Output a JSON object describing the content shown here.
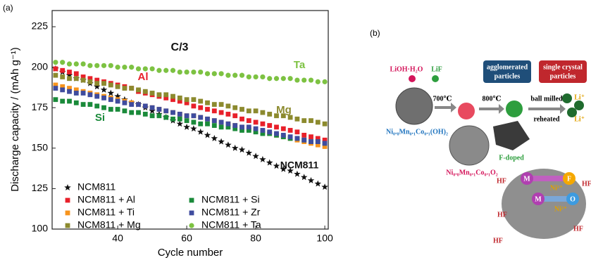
{
  "chart_data": {
    "type": "scatter",
    "panel_label": "(a)",
    "xlabel": "Cycle number",
    "ylabel": "Discharge capacity / (mAh g⁻¹)",
    "xlim": [
      21,
      101
    ],
    "ylim": [
      100,
      235
    ],
    "xticks": [
      40,
      60,
      80,
      100
    ],
    "yticks": [
      100,
      125,
      150,
      175,
      200,
      225
    ],
    "x": [
      22,
      24,
      26,
      28,
      30,
      32,
      34,
      36,
      38,
      40,
      42,
      44,
      46,
      48,
      50,
      52,
      54,
      56,
      58,
      60,
      62,
      64,
      66,
      68,
      70,
      72,
      74,
      76,
      78,
      80,
      82,
      84,
      86,
      88,
      90,
      92,
      94,
      96,
      98,
      100
    ],
    "series": [
      {
        "name": "NCM811",
        "color": "#111111",
        "marker": "star",
        "values": [
          199,
          197,
          195,
          193,
          192,
          190,
          188,
          186,
          184,
          182,
          180,
          178,
          177,
          175,
          173,
          171,
          169,
          167,
          165,
          163,
          162,
          160,
          158,
          156,
          154,
          152,
          150,
          149,
          147,
          145,
          143,
          141,
          139,
          137,
          136,
          134,
          132,
          130,
          128,
          126
        ]
      },
      {
        "name": "NCM811 + Al",
        "color": "#e8202a",
        "marker": "square",
        "values": [
          199,
          198,
          197,
          196,
          194,
          193,
          192,
          191,
          190,
          189,
          188,
          187,
          185,
          184,
          183,
          182,
          181,
          180,
          179,
          178,
          176,
          175,
          174,
          173,
          172,
          171,
          170,
          168,
          167,
          166,
          165,
          164,
          163,
          162,
          161,
          160,
          158,
          157,
          156,
          155
        ]
      },
      {
        "name": "NCM811 + Ti",
        "color": "#f7941d",
        "marker": "square",
        "values": [
          189,
          188,
          187,
          186,
          185,
          184,
          183,
          182,
          181,
          180,
          179,
          178,
          177,
          176,
          175,
          174,
          173,
          172,
          171,
          170,
          170,
          169,
          168,
          167,
          166,
          165,
          164,
          163,
          162,
          161,
          160,
          159,
          158,
          157,
          156,
          155,
          154,
          153,
          152,
          151
        ]
      },
      {
        "name": "NCM811 + Mg",
        "color": "#8c8a2e",
        "marker": "square",
        "values": [
          195,
          194,
          193,
          193,
          192,
          191,
          190,
          190,
          189,
          188,
          187,
          187,
          186,
          185,
          184,
          183,
          183,
          182,
          181,
          180,
          180,
          179,
          178,
          177,
          177,
          176,
          175,
          174,
          173,
          173,
          172,
          171,
          170,
          170,
          169,
          168,
          167,
          167,
          166,
          165
        ]
      },
      {
        "name": "NCM811 + Si",
        "color": "#1a8a3a",
        "marker": "square",
        "values": [
          180,
          179,
          179,
          178,
          177,
          177,
          176,
          175,
          174,
          174,
          173,
          172,
          172,
          171,
          170,
          170,
          169,
          168,
          168,
          167,
          166,
          165,
          165,
          164,
          163,
          163,
          162,
          161,
          161,
          160,
          159,
          159,
          158,
          157,
          156,
          156,
          155,
          154,
          154,
          153
        ]
      },
      {
        "name": "NCM811 + Zr",
        "color": "#3f4c9e",
        "marker": "square",
        "values": [
          187,
          186,
          185,
          184,
          184,
          183,
          182,
          181,
          180,
          179,
          178,
          177,
          177,
          176,
          175,
          174,
          173,
          172,
          171,
          170,
          170,
          169,
          168,
          167,
          166,
          165,
          164,
          163,
          163,
          162,
          161,
          160,
          159,
          158,
          157,
          156,
          155,
          154,
          154,
          153
        ]
      },
      {
        "name": "NCM811 + Ta",
        "color": "#7dc242",
        "marker": "circle",
        "values": [
          203,
          203,
          202,
          202,
          202,
          201,
          201,
          201,
          201,
          200,
          200,
          200,
          199,
          199,
          199,
          198,
          198,
          198,
          197,
          197,
          197,
          197,
          196,
          196,
          196,
          195,
          195,
          195,
          194,
          194,
          194,
          193,
          193,
          193,
          193,
          192,
          192,
          192,
          191,
          191
        ]
      }
    ],
    "annotations": [
      {
        "text": "C/3",
        "color": "#111111"
      },
      {
        "text": "Ta",
        "color": "#7dc242"
      },
      {
        "text": "Al",
        "color": "#e8202a"
      },
      {
        "text": "Mg",
        "color": "#8c8a2e"
      },
      {
        "text": "Si",
        "color": "#1a8a3a"
      },
      {
        "text": "NCM811",
        "color": "#111111"
      }
    ]
  },
  "diagram": {
    "panel_label": "(b)",
    "reagent1": "LiOH·H₂O",
    "reagent2": "LiF",
    "temp1": "700℃",
    "temp2": "800℃",
    "agglomerated": [
      "agglomerated",
      "particles"
    ],
    "single_crystal": [
      "single crystal",
      "particles"
    ],
    "process": [
      "ball milled",
      "reheated"
    ],
    "precursor": "Ni₀.₈Mn₀.₁Co₀.₁(OH)₂",
    "oxide": "Ni₀.₈Mn₀.₁Co₀.₁O₂",
    "doped": "F-doped",
    "li": [
      "Li⁺",
      "Li⁺"
    ],
    "atoms": [
      "M",
      "F",
      "M",
      "O"
    ],
    "hf": [
      "HF",
      "HF",
      "HF",
      "HF",
      "HF"
    ],
    "ni": [
      "Ni²⁺",
      "Ni²⁺"
    ]
  }
}
